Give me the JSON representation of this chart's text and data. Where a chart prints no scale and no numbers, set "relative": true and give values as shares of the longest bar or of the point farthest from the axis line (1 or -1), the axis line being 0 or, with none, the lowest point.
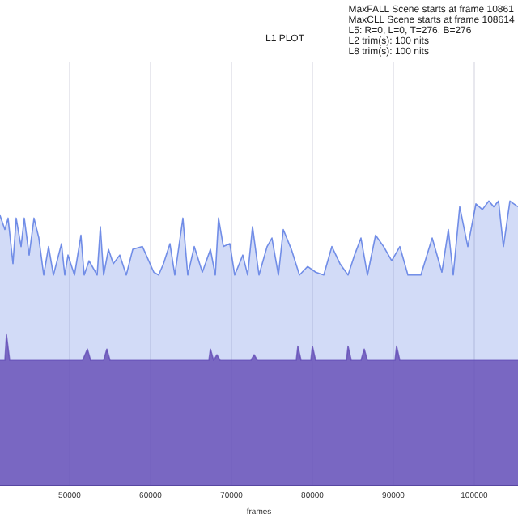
{
  "chart_data": {
    "type": "area",
    "title": "L1 PLOT",
    "xlabel": "frames",
    "relative": true,
    "annotations": [
      "MaxFALL Scene starts at frame 10861",
      "MaxCLL Scene starts at frame 108614",
      "L5: R=0, L=0, T=276, B=276",
      "L2 trim(s): 100 nits",
      "L8 trim(s): 100 nits"
    ],
    "xlim": [
      41400,
      105400
    ],
    "xticks": [
      50000,
      60000,
      70000,
      80000,
      90000,
      100000
    ],
    "grid": "x",
    "legend": false,
    "series": [
      {
        "color": "#4a6ee0",
        "x": [
          41400,
          42000,
          42400,
          43000,
          43400,
          44000,
          44400,
          45000,
          45600,
          46200,
          46800,
          47400,
          48000,
          49000,
          49400,
          49800,
          50600,
          51400,
          51800,
          52400,
          53400,
          53800,
          54200,
          54800,
          55400,
          56200,
          57000,
          57800,
          59000,
          60400,
          61000,
          61600,
          62400,
          63000,
          64000,
          64600,
          65400,
          66400,
          67400,
          68000,
          68400,
          69000,
          69800,
          70400,
          71400,
          72000,
          72600,
          73400,
          74400,
          75000,
          75800,
          76400,
          77400,
          78400,
          79400,
          80400,
          81400,
          82400,
          83400,
          84400,
          85200,
          86000,
          86800,
          87800,
          88800,
          89800,
          90800,
          91800,
          92600,
          93400,
          94800,
          96000,
          96800,
          97400,
          98200,
          99200,
          100200,
          101000,
          101800,
          102400,
          103000,
          103600,
          104400,
          105400
        ],
        "values": [
          0.95,
          0.9,
          0.94,
          0.78,
          0.94,
          0.84,
          0.94,
          0.81,
          0.94,
          0.87,
          0.74,
          0.84,
          0.74,
          0.85,
          0.74,
          0.81,
          0.74,
          0.88,
          0.74,
          0.79,
          0.74,
          0.91,
          0.74,
          0.83,
          0.78,
          0.81,
          0.74,
          0.83,
          0.84,
          0.75,
          0.74,
          0.78,
          0.85,
          0.74,
          0.94,
          0.74,
          0.84,
          0.75,
          0.83,
          0.74,
          0.94,
          0.84,
          0.85,
          0.74,
          0.81,
          0.74,
          0.91,
          0.74,
          0.84,
          0.87,
          0.74,
          0.9,
          0.83,
          0.74,
          0.77,
          0.75,
          0.74,
          0.84,
          0.78,
          0.74,
          0.81,
          0.87,
          0.74,
          0.88,
          0.84,
          0.79,
          0.84,
          0.74,
          0.74,
          0.74,
          0.87,
          0.75,
          0.9,
          0.74,
          0.98,
          0.84,
          0.99,
          0.97,
          1.0,
          0.98,
          1.0,
          0.84,
          1.0,
          0.98
        ]
      },
      {
        "color": "#6a3fa8",
        "x": [
          41400,
          42000,
          42200,
          42600,
          51600,
          52200,
          52600,
          54200,
          54600,
          55000,
          67200,
          67400,
          67800,
          67800,
          68200,
          68600,
          72400,
          72800,
          73200,
          78000,
          78200,
          78600,
          79800,
          80000,
          80400,
          84200,
          84400,
          84800,
          86000,
          86400,
          86800,
          90200,
          90400,
          90800,
          105400
        ],
        "values": [
          0.44,
          0.44,
          0.53,
          0.44,
          0.44,
          0.48,
          0.44,
          0.44,
          0.48,
          0.44,
          0.44,
          0.48,
          0.44,
          0.44,
          0.46,
          0.44,
          0.44,
          0.46,
          0.44,
          0.44,
          0.49,
          0.44,
          0.44,
          0.49,
          0.44,
          0.44,
          0.49,
          0.44,
          0.44,
          0.48,
          0.44,
          0.44,
          0.49,
          0.44,
          0.44
        ]
      }
    ]
  }
}
